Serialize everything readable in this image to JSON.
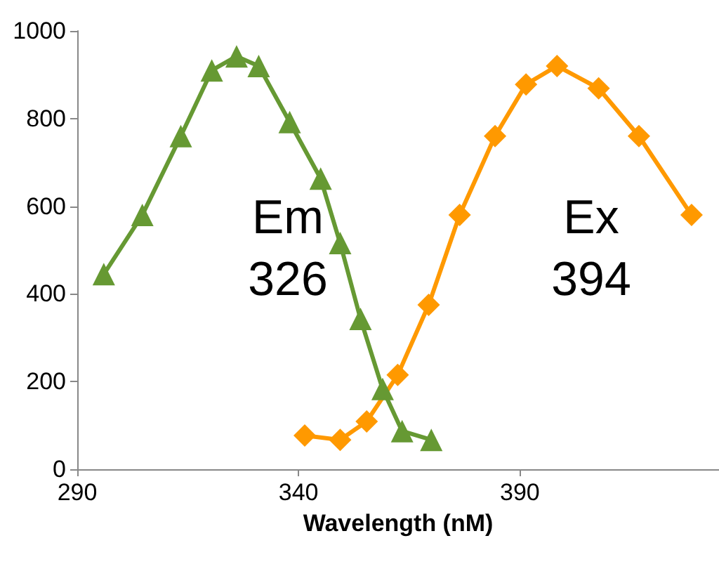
{
  "chart_data": {
    "type": "line",
    "xlabel": "Wavelength (nM)",
    "xlim": [
      290,
      435
    ],
    "xticks": [
      290,
      340,
      390
    ],
    "ylim": [
      0,
      1000
    ],
    "yticks": [
      0,
      200,
      400,
      600,
      800,
      1000
    ],
    "grid": false,
    "series": [
      {
        "color": "#669933",
        "marker": "triangle",
        "x": [
          296,
          304.7,
          313.4,
          320.4,
          326,
          331,
          338,
          345,
          349.4,
          354,
          359,
          363.4,
          370
        ],
        "values": [
          445,
          580,
          760,
          910,
          942,
          920,
          792,
          663,
          516,
          343,
          183,
          87,
          67
        ]
      },
      {
        "color": "#ff9900",
        "marker": "diamond",
        "x": [
          341.4,
          349.4,
          355.4,
          362.4,
          369.4,
          376.4,
          384.4,
          391.4,
          398.4,
          407.8,
          416.9,
          428.8
        ],
        "values": [
          77,
          67,
          109,
          215,
          375,
          580,
          760,
          878,
          920,
          869,
          760,
          580
        ]
      }
    ],
    "annotations": [
      "Em\n326",
      "Ex\n394"
    ]
  }
}
